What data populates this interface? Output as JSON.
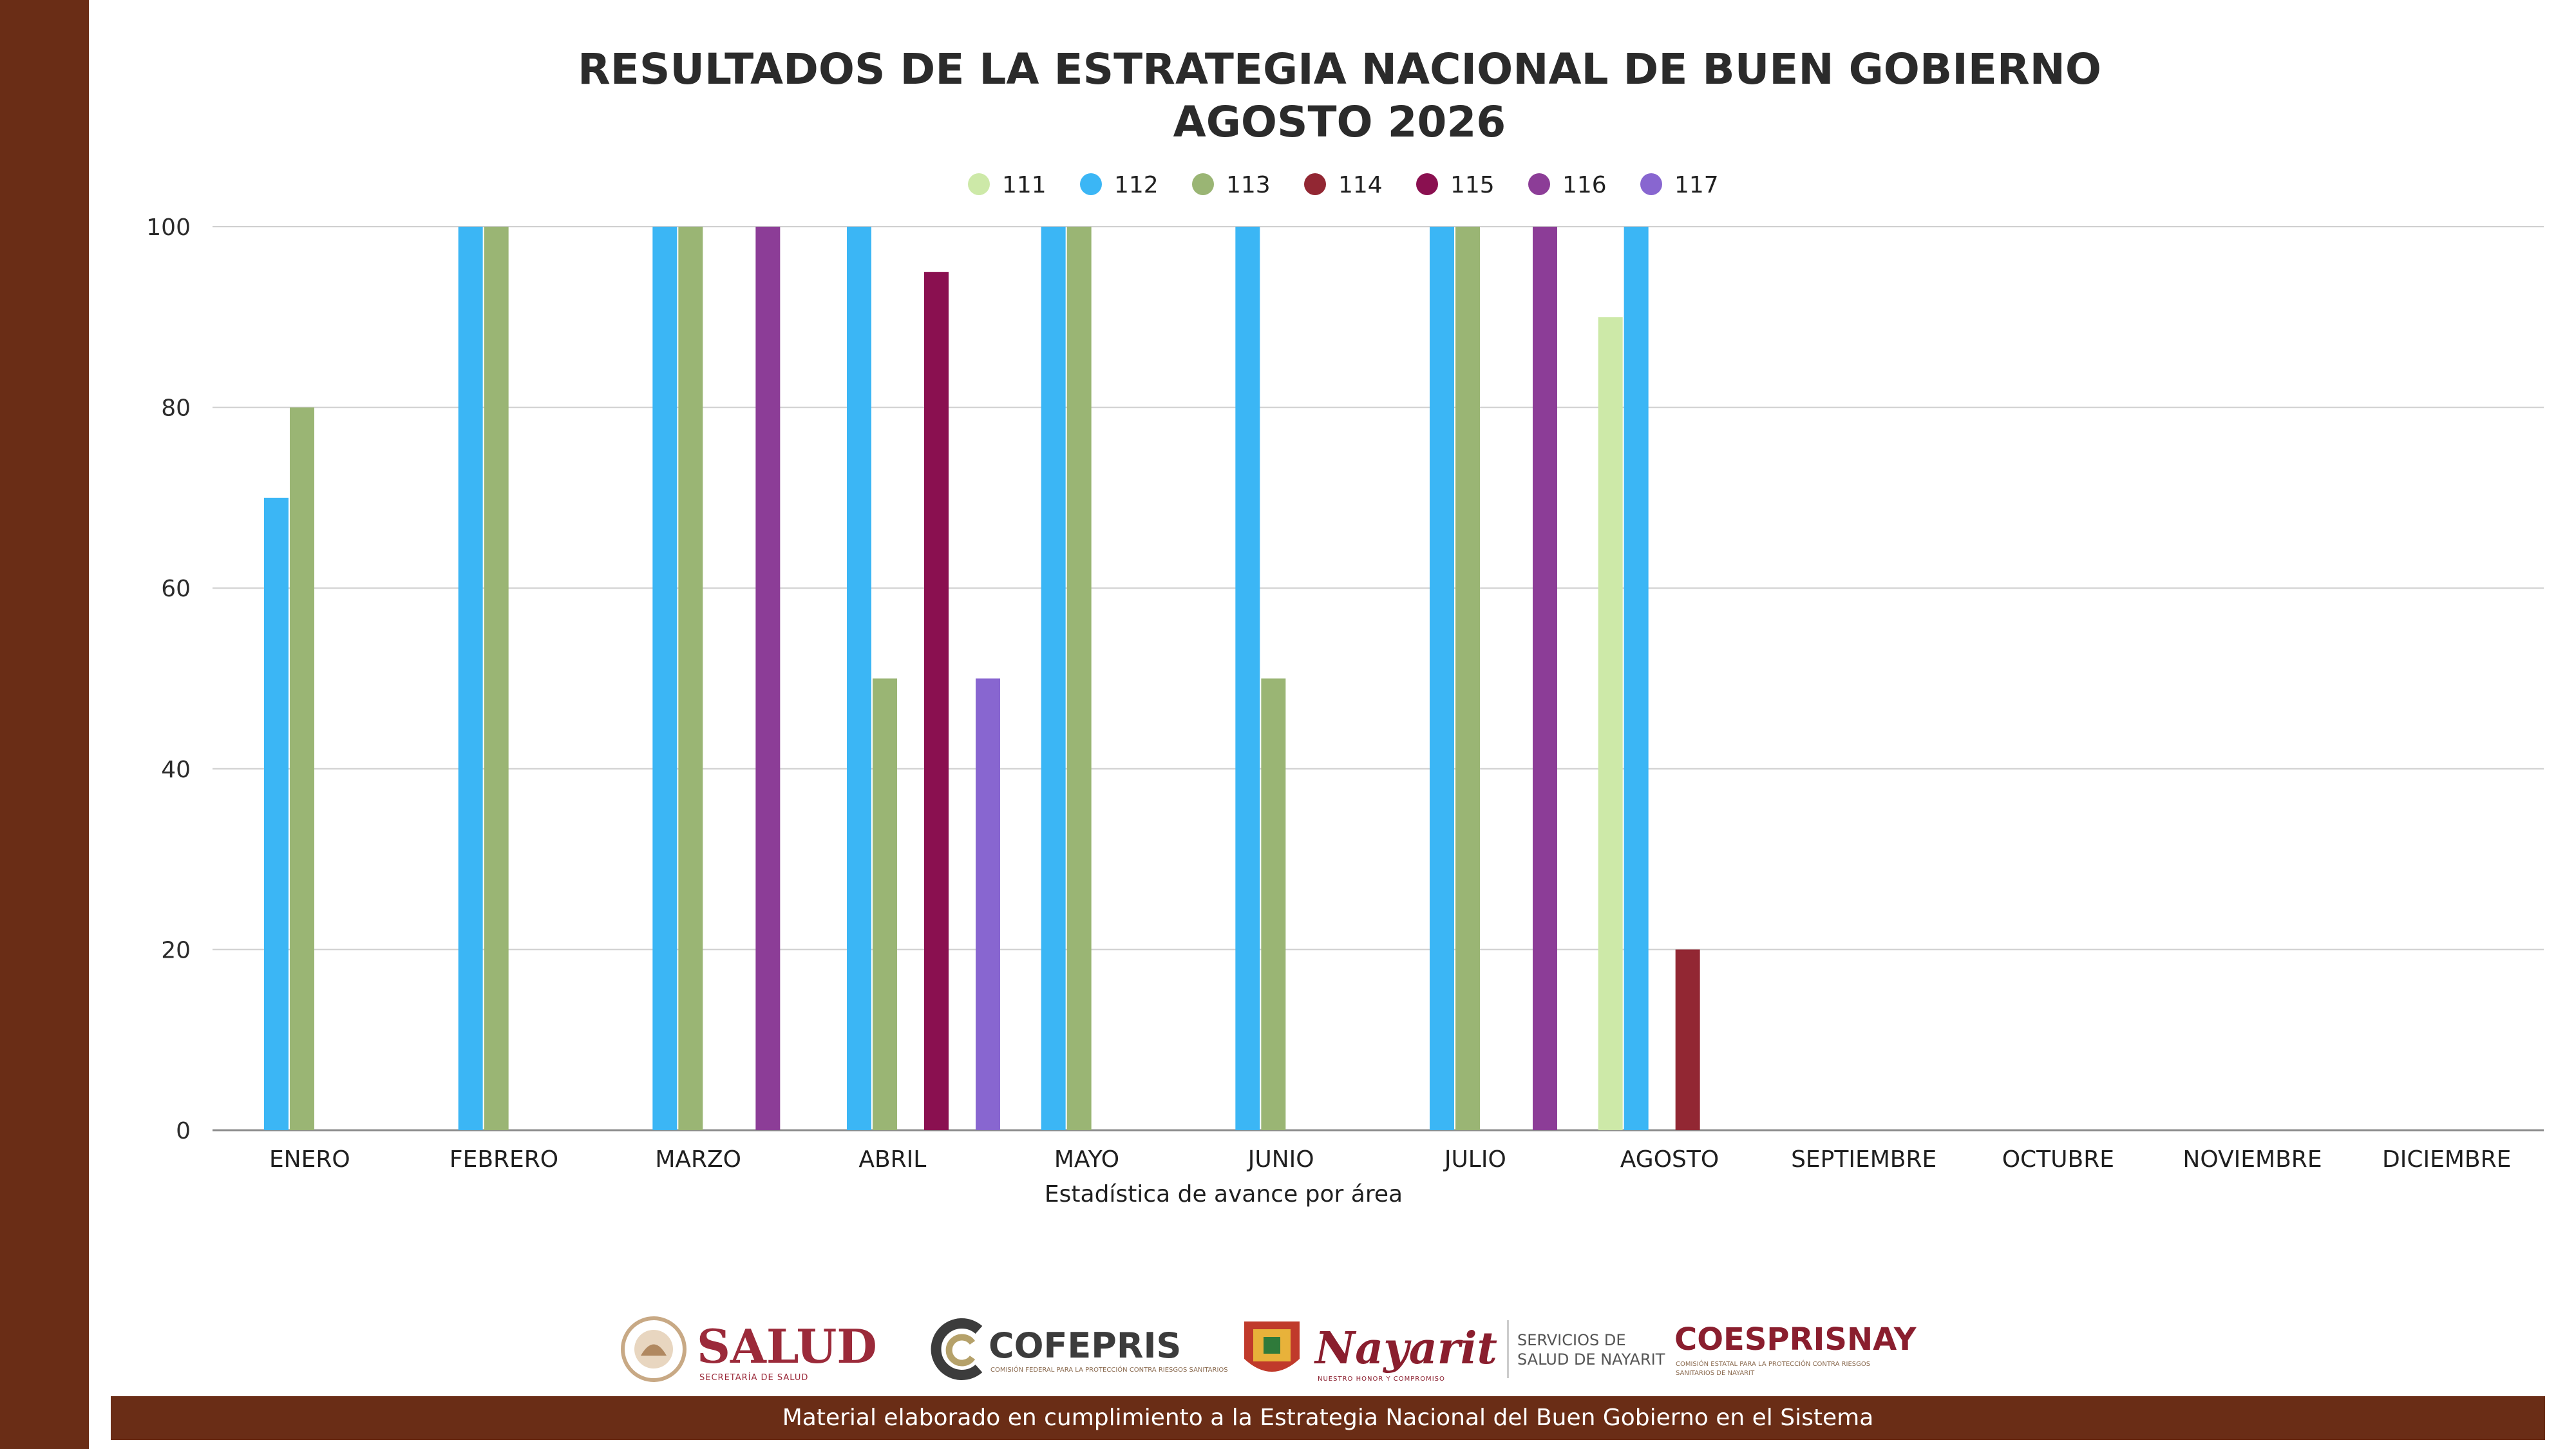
{
  "title_line_1": "RESULTADOS DE LA ESTRATEGIA NACIONAL DE BUEN GOBIERNO",
  "title_line_2": "AGOSTO 2026",
  "footer_text": "Material elaborado en cumplimiento a la Estrategia Nacional  del Buen Gobierno en el Sistema",
  "logos": {
    "salud": {
      "name": "SALUD",
      "sub": "SECRETARÍA DE SALUD"
    },
    "cofepris": {
      "name": "COFEPRIS",
      "sub": "COMISIÓN FEDERAL PARA LA PROTECCIÓN CONTRA RIESGOS SANITARIOS"
    },
    "nayarit": {
      "name": "Nayarit",
      "sub": "NUESTRO HONOR Y COMPROMISO",
      "aside": "SERVICIOS DE SALUD DE NAYARIT"
    },
    "coesprisnay": {
      "name": "COESPRISNAY",
      "sub": "COMISIÓN ESTATAL PARA LA PROTECCIÓN CONTRA RIESGOS SANITARIOS DE NAYARIT"
    }
  },
  "chart_data": {
    "type": "bar",
    "xlabel": "Estadística de avance por área",
    "ylabel": "",
    "ylim": [
      0,
      100
    ],
    "yticks": [
      0,
      20,
      40,
      60,
      80,
      100
    ],
    "grid": true,
    "legend_position": "top-center",
    "categories": [
      "ENERO",
      "FEBRERO",
      "MARZO",
      "ABRIL",
      "MAYO",
      "JUNIO",
      "JULIO",
      "AGOSTO",
      "SEPTIEMBRE",
      "OCTUBRE",
      "NOVIEMBRE",
      "DICIEMBRE"
    ],
    "series": [
      {
        "name": "111",
        "color": "#cde9a8",
        "values": [
          null,
          null,
          null,
          null,
          null,
          null,
          null,
          90,
          null,
          null,
          null,
          null
        ]
      },
      {
        "name": "112",
        "color": "#3bb6f5",
        "values": [
          70,
          100,
          100,
          100,
          100,
          100,
          100,
          100,
          null,
          null,
          null,
          null
        ]
      },
      {
        "name": "113",
        "color": "#9ab574",
        "values": [
          80,
          100,
          100,
          50,
          100,
          50,
          100,
          null,
          null,
          null,
          null,
          null
        ]
      },
      {
        "name": "114",
        "color": "#922733",
        "values": [
          null,
          null,
          null,
          null,
          null,
          null,
          null,
          20,
          null,
          null,
          null,
          null
        ]
      },
      {
        "name": "115",
        "color": "#8a1050",
        "values": [
          null,
          null,
          null,
          95,
          null,
          null,
          null,
          null,
          null,
          null,
          null,
          null
        ]
      },
      {
        "name": "116",
        "color": "#8c3d97",
        "values": [
          null,
          null,
          100,
          null,
          null,
          null,
          100,
          null,
          null,
          null,
          null,
          null
        ]
      },
      {
        "name": "117",
        "color": "#8866d0",
        "values": [
          null,
          null,
          null,
          50,
          null,
          null,
          null,
          null,
          null,
          null,
          null,
          null
        ]
      }
    ]
  }
}
